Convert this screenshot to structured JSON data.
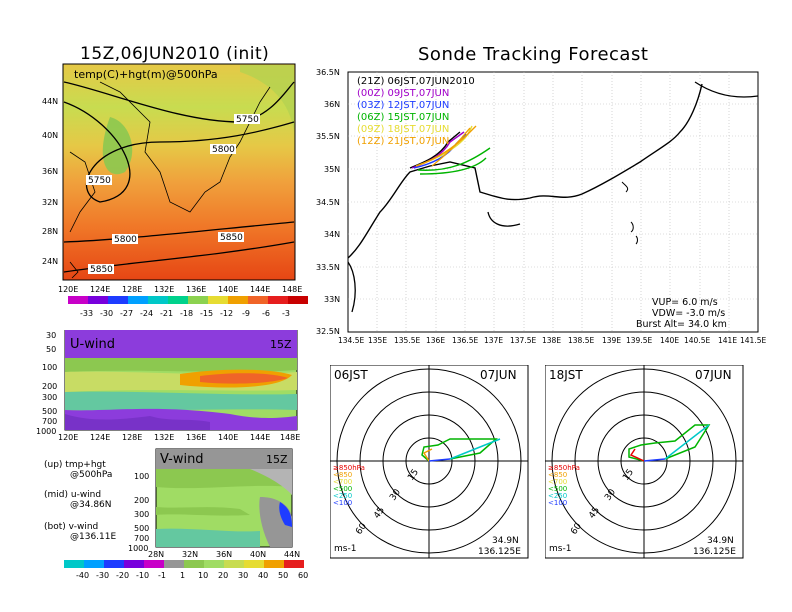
{
  "left_title": "15Z,06JUN2010 (init)",
  "right_title": "Sonde Tracking Forecast",
  "map500": {
    "label": "temp(C)+hgt(m)@500hPa",
    "lat_ticks": [
      "24N",
      "28N",
      "32N",
      "36N",
      "40N",
      "44N"
    ],
    "lon_ticks": [
      "120E",
      "124E",
      "128E",
      "132E",
      "136E",
      "140E",
      "144E",
      "148E"
    ],
    "contour_labels": [
      "5750",
      "5800",
      "5750",
      "5800",
      "5850",
      "5850"
    ],
    "colorbar": [
      "-33",
      "-30",
      "-27",
      "-24",
      "-21",
      "-18",
      "-15",
      "-12",
      "-9",
      "-6",
      "-3"
    ]
  },
  "uwind": {
    "label": "U-wind",
    "time": "15Z",
    "p_ticks": [
      "30",
      "50",
      "100",
      "200",
      "300",
      "500",
      "700",
      "1000"
    ],
    "lon_ticks": [
      "120E",
      "124E",
      "128E",
      "132E",
      "136E",
      "140E",
      "144E",
      "148E"
    ]
  },
  "vwind": {
    "label": "V-wind",
    "time": "15Z",
    "p_ticks": [
      "100",
      "200",
      "300",
      "500",
      "700",
      "1000"
    ],
    "lat_ticks": [
      "28N",
      "32N",
      "36N",
      "40N",
      "44N"
    ]
  },
  "wind_colorbar": [
    "-40",
    "-30",
    "-20",
    "-10",
    "-1",
    "1",
    "10",
    "20",
    "30",
    "40",
    "50",
    "60"
  ],
  "legend_notes": [
    {
      "a": "(up) tmp+hgt",
      "b": "@500hPa"
    },
    {
      "a": "(mid) u-wind",
      "b": "@34.86N"
    },
    {
      "a": "(bot) v-wind",
      "b": "@136.11E"
    }
  ],
  "tracking": {
    "legend": [
      {
        "text": "(21Z) 06JST,07JUN2010",
        "color": "#000000"
      },
      {
        "text": "(00Z) 09JST,07JUN",
        "color": "#a000c8"
      },
      {
        "text": "(03Z) 12JST,07JUN",
        "color": "#1e3cff"
      },
      {
        "text": "(06Z) 15JST,07JUN",
        "color": "#00b400"
      },
      {
        "text": "(09Z) 18JST,07JUN",
        "color": "#e6dc32"
      },
      {
        "text": "(12Z) 21JST,07JUN",
        "color": "#f0a000"
      }
    ],
    "lat_ticks": [
      "32.5N",
      "33N",
      "33.5N",
      "34N",
      "34.5N",
      "35N",
      "35.5N",
      "36N",
      "36.5N"
    ],
    "lon_ticks": [
      "134.5E",
      "135E",
      "135.5E",
      "136E",
      "136.5E",
      "137E",
      "137.5E",
      "138E",
      "138.5E",
      "139E",
      "139.5E",
      "140E",
      "140.5E",
      "141E",
      "141.5E"
    ],
    "params": [
      "VUP=  6.0 m/s",
      "VDW= -3.0 m/s",
      "Burst Alt= 34.0 km"
    ]
  },
  "hodo1": {
    "time": "06JST",
    "date": "07JUN",
    "unit": "ms-1",
    "lat": "34.9N",
    "lon": "136.125E",
    "rings": [
      "15",
      "30",
      "45",
      "60"
    ]
  },
  "hodo2": {
    "time": "18JST",
    "date": "07JUN",
    "unit": "ms-1",
    "lat": "34.9N",
    "lon": "136.125E",
    "rings": [
      "15",
      "30",
      "45",
      "60"
    ]
  },
  "hodo_legend": [
    {
      "text": "≥850hPa",
      "color": "#e60000"
    },
    {
      "text": "<850",
      "color": "#f0a000"
    },
    {
      "text": "<700",
      "color": "#e6dc32"
    },
    {
      "text": "<500",
      "color": "#00b400"
    },
    {
      "text": "<250",
      "color": "#00c8c8"
    },
    {
      "text": "<100",
      "color": "#1e3cff"
    }
  ]
}
